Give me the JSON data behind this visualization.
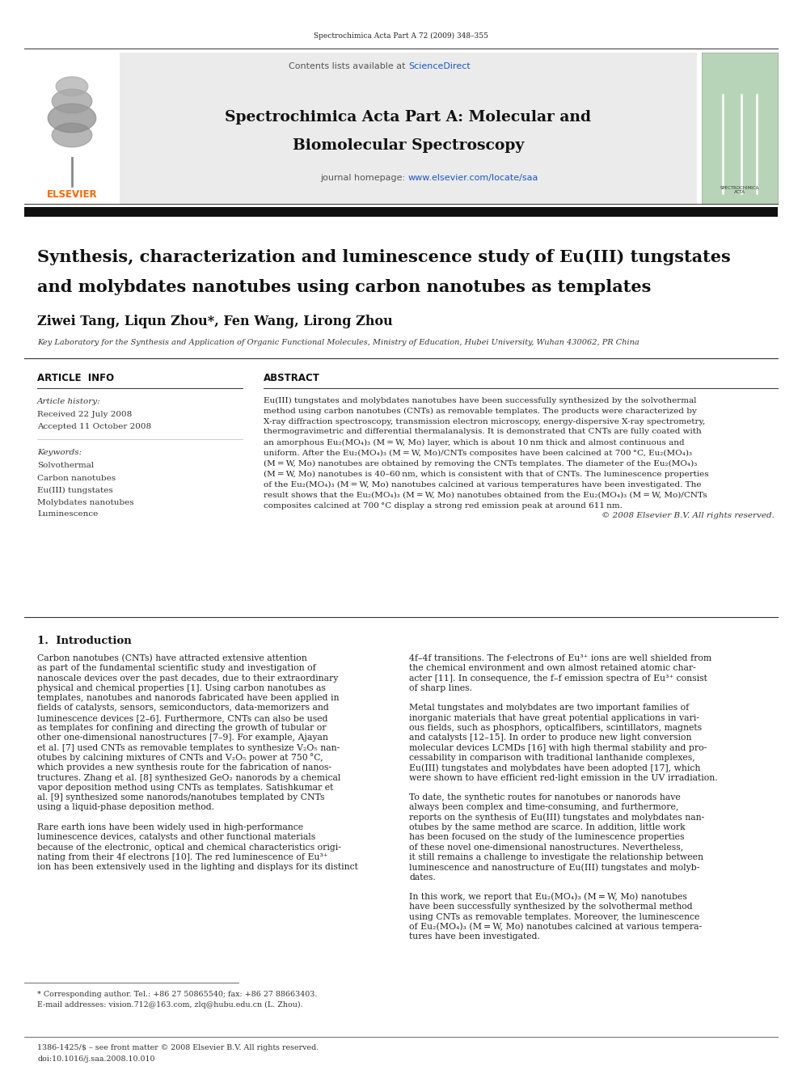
{
  "page_width": 9.92,
  "page_height": 13.23,
  "bg_color": "#ffffff",
  "journal_header_text": "Spectrochimica Acta Part A 72 (2009) 348–355",
  "header_bg": "#e8e8e8",
  "journal_title_line1": "Spectrochimica Acta Part A: Molecular and",
  "journal_title_line2": "Biomolecular Spectroscopy",
  "elsevier_color": "#FF6600",
  "science_direct_color": "#1a56cc",
  "article_title_line1": "Synthesis, characterization and luminescence study of Eu(III) tungstates",
  "article_title_line2": "and molybdates nanotubes using carbon nanotubes as templates",
  "authors": "Ziwei Tang, Liqun Zhou*, Fen Wang, Lirong Zhou",
  "affiliation": "Key Laboratory for the Synthesis and Application of Organic Functional Molecules, Ministry of Education, Hubei University, Wuhan 430062, PR China",
  "article_info_title": "ARTICLE  INFO",
  "abstract_title": "ABSTRACT",
  "article_history_label": "Article history:",
  "received": "Received 22 July 2008",
  "accepted": "Accepted 11 October 2008",
  "keywords_label": "Keywords:",
  "keywords": [
    "Solvothermal",
    "Carbon nanotubes",
    "Eu(III) tungstates",
    "Molybdates nanotubes",
    "Luminescence"
  ],
  "abstract_lines": [
    "Eu(III) tungstates and molybdates nanotubes have been successfully synthesized by the solvothermal",
    "method using carbon nanotubes (CNTs) as removable templates. The products were characterized by",
    "X-ray diffraction spectroscopy, transmission electron microscopy, energy-dispersive X-ray spectrometry,",
    "thermogravimetric and differential thermalanalysis. It is demonstrated that CNTs are fully coated with",
    "an amorphous Eu₂(MO₄)₃ (M = W, Mo) layer, which is about 10 nm thick and almost continuous and",
    "uniform. After the Eu₂(MO₄)₃ (M = W, Mo)/CNTs composites have been calcined at 700 °C, Eu₂(MO₄)₃",
    "(M = W, Mo) nanotubes are obtained by removing the CNTs templates. The diameter of the Eu₂(MO₄)₃",
    "(M = W, Mo) nanotubes is 40–60 nm, which is consistent with that of CNTs. The luminescence properties",
    "of the Eu₂(MO₄)₃ (M = W, Mo) nanotubes calcined at various temperatures have been investigated. The",
    "result shows that the Eu₂(MO₄)₃ (M = W, Mo) nanotubes obtained from the Eu₂(MO₄)₃ (M = W, Mo)/CNTs",
    "composites calcined at 700 °C display a strong red emission peak at around 611 nm."
  ],
  "copyright": "© 2008 Elsevier B.V. All rights reserved.",
  "intro_title": "1.  Introduction",
  "intro_left_lines": [
    "Carbon nanotubes (CNTs) have attracted extensive attention",
    "as part of the fundamental scientific study and investigation of",
    "nanoscale devices over the past decades, due to their extraordinary",
    "physical and chemical properties [1]. Using carbon nanotubes as",
    "templates, nanotubes and nanorods fabricated have been applied in",
    "fields of catalysts, sensors, semiconductors, data-memorizers and",
    "luminescence devices [2–6]. Furthermore, CNTs can also be used",
    "as templates for confining and directing the growth of tubular or",
    "other one-dimensional nanostructures [7–9]. For example, Ajayan",
    "et al. [7] used CNTs as removable templates to synthesize V₂O₅ nan-",
    "otubes by calcining mixtures of CNTs and V₂O₅ power at 750 °C,",
    "which provides a new synthesis route for the fabrication of nanos-",
    "tructures. Zhang et al. [8] synthesized GeO₂ nanorods by a chemical",
    "vapor deposition method using CNTs as templates. Satishkumar et",
    "al. [9] synthesized some nanorods/nanotubes templated by CNTs",
    "using a liquid-phase deposition method.",
    "",
    "Rare earth ions have been widely used in high-performance",
    "luminescence devices, catalysts and other functional materials",
    "because of the electronic, optical and chemical characteristics origi-",
    "nating from their 4f electrons [10]. The red luminescence of Eu³⁺",
    "ion has been extensively used in the lighting and displays for its distinct"
  ],
  "intro_right_lines": [
    "4f–4f transitions. The f-electrons of Eu³⁺ ions are well shielded from",
    "the chemical environment and own almost retained atomic char-",
    "acter [11]. In consequence, the f–f emission spectra of Eu³⁺ consist",
    "of sharp lines.",
    "",
    "Metal tungstates and molybdates are two important families of",
    "inorganic materials that have great potential applications in vari-",
    "ous fields, such as phosphors, opticalfibers, scintillators, magnets",
    "and catalysts [12–15]. In order to produce new light conversion",
    "molecular devices LCMDs [16] with high thermal stability and pro-",
    "cessability in comparison with traditional lanthanide complexes,",
    "Eu(III) tungstates and molybdates have been adopted [17], which",
    "were shown to have efficient red-light emission in the UV irradiation.",
    "",
    "To date, the synthetic routes for nanotubes or nanorods have",
    "always been complex and time-consuming, and furthermore,",
    "reports on the synthesis of Eu(III) tungstates and molybdates nan-",
    "otubes by the same method are scarce. In addition, little work",
    "has been focused on the study of the luminescence properties",
    "of these novel one-dimensional nanostructures. Nevertheless,",
    "it still remains a challenge to investigate the relationship between",
    "luminescence and nanostructure of Eu(III) tungstates and molyb-",
    "dates.",
    "",
    "In this work, we report that Eu₂(MO₄)₃ (M = W, Mo) nanotubes",
    "have been successfully synthesized by the solvothermal method",
    "using CNTs as removable templates. Moreover, the luminescence",
    "of Eu₂(MO₄)₃ (M = W, Mo) nanotubes calcined at various tempera-",
    "tures have been investigated."
  ],
  "footnote_lines": [
    "* Corresponding author. Tel.: +86 27 50865540; fax: +86 27 88663403.",
    "E-mail addresses: vision.712@163.com, zlq@hubu.edu.cn (L. Zhou)."
  ],
  "issn_line": "1386-1425/$ – see front matter © 2008 Elsevier B.V. All rights reserved.",
  "doi_line": "doi:10.1016/j.saa.2008.10.010",
  "contents_line": "Contents lists available at ScienceDirect",
  "sci_direct_label": "ScienceDirect"
}
